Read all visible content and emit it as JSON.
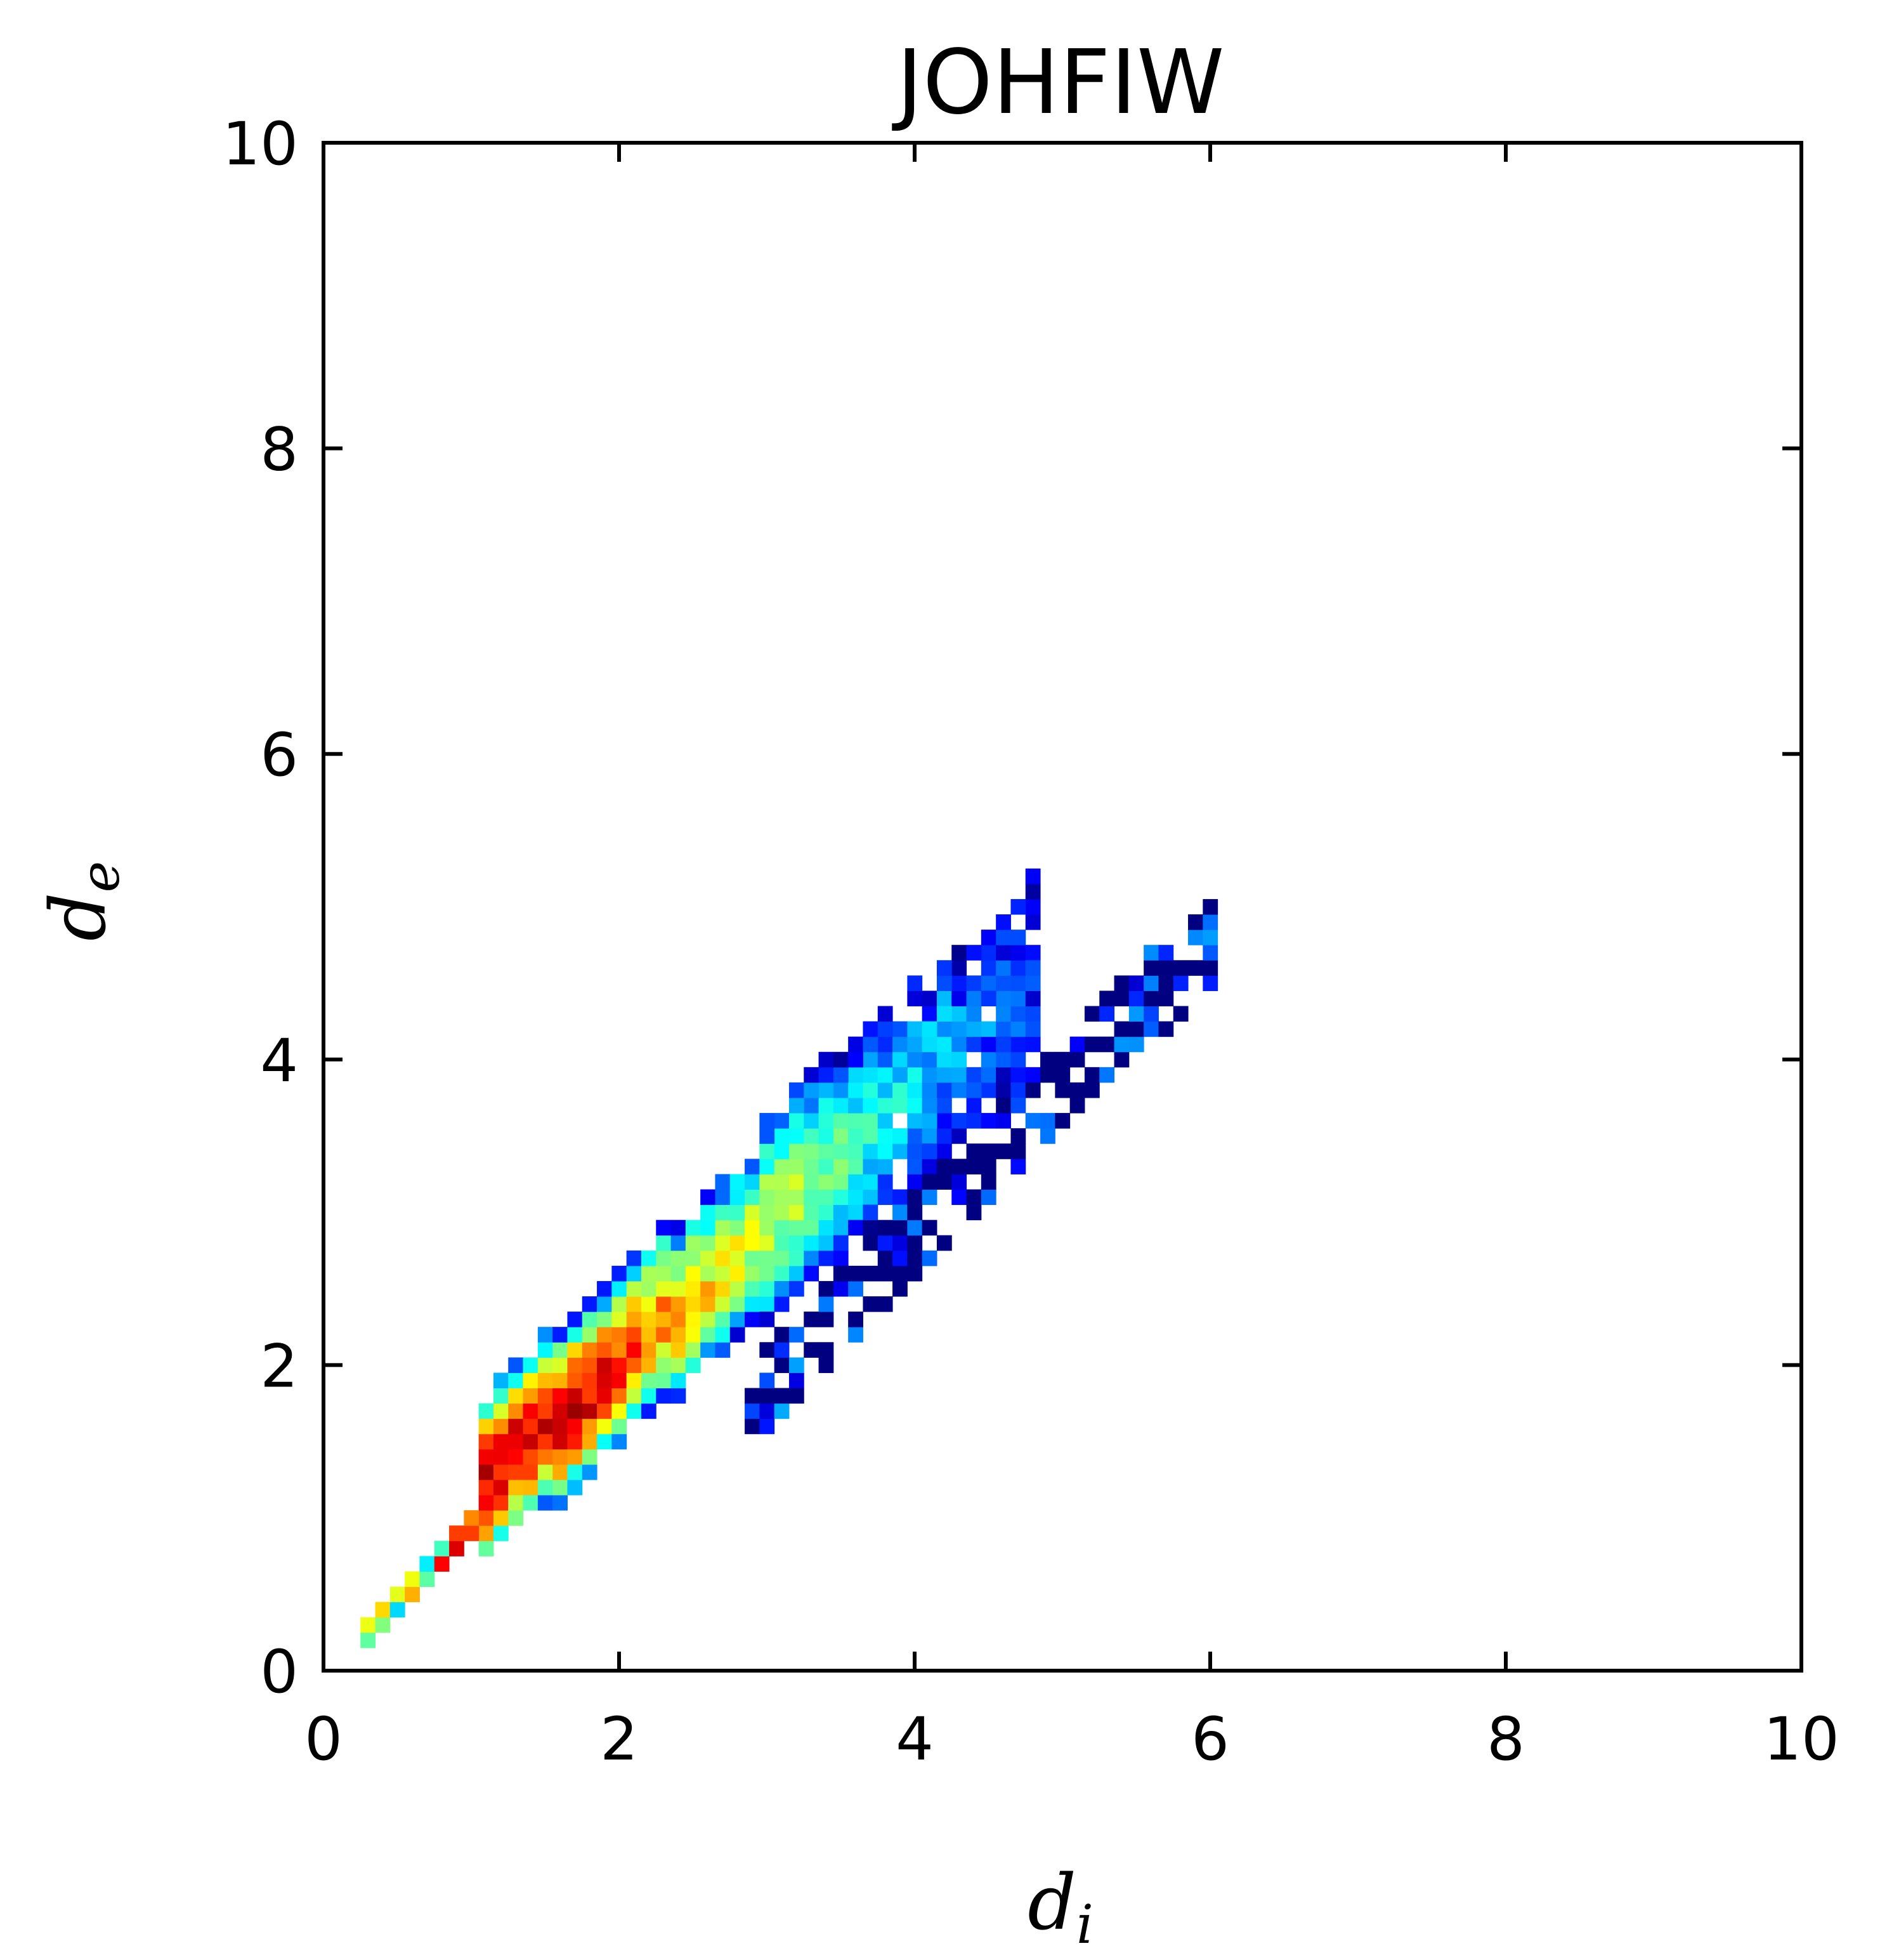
{
  "chart_data": {
    "type": "heatmap",
    "title": "JOHFIW",
    "xlabel": {
      "main": "d",
      "sub": "i"
    },
    "ylabel": {
      "main": "d",
      "sub": "e"
    },
    "xlim": [
      0,
      10
    ],
    "ylim": [
      0,
      10
    ],
    "xticks": [
      "0",
      "2",
      "4",
      "6",
      "8",
      "10"
    ],
    "yticks": [
      "0",
      "2",
      "4",
      "6",
      "8",
      "10"
    ],
    "colormap": "jet",
    "grid": false,
    "bin_size": 0.1,
    "regions": [
      {
        "name": "main-band",
        "x_start": 1.05,
        "x_end": 4.8,
        "slope": 0.87,
        "intercept": 0.35,
        "half_width": 0.55
      },
      {
        "name": "upper-tail",
        "x_start": 3.0,
        "x_end": 4.8,
        "slope": 0.87,
        "intercept": 0.35,
        "half_width": 0.65
      },
      {
        "name": "second-band",
        "x_start": 2.9,
        "x_end": 6.0,
        "slope": 0.97,
        "intercept": -1.0,
        "half_width": 0.28
      },
      {
        "name": "low-diagonal",
        "x_start": 0.3,
        "x_end": 1.1,
        "slope": 1.0,
        "intercept": 0.0,
        "half_width": 0.07
      }
    ],
    "density_peak": {
      "x": 1.7,
      "y": 1.4,
      "level": 1.0
    },
    "density_ridge": {
      "x_start": 1.2,
      "x_end": 3.0,
      "level_start": 0.9,
      "level_end": 0.55
    },
    "note_colors": {
      "low": "#00007f",
      "mid": "#7fff7f",
      "high": "#7f0000"
    }
  }
}
